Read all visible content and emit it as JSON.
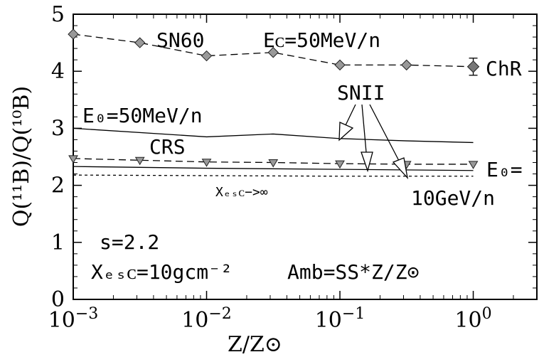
{
  "chart_data": {
    "type": "line",
    "xscale": "log",
    "xlim": [
      0.001,
      3
    ],
    "ylim": [
      0,
      5
    ],
    "xlabel": "Z/Z⊙",
    "ylabel": "Q(¹¹B)/Q(¹⁰B)",
    "x_ticks": [
      {
        "value": 0.001,
        "base": "10",
        "exp": "−3"
      },
      {
        "value": 0.01,
        "base": "10",
        "exp": "−2"
      },
      {
        "value": 0.1,
        "base": "10",
        "exp": "−1"
      },
      {
        "value": 1,
        "base": "10",
        "exp": "0"
      }
    ],
    "y_ticks": [
      "0",
      "1",
      "2",
      "3",
      "4",
      "5"
    ],
    "series": [
      {
        "style": "dashed-diamond",
        "x": [
          0.001,
          0.00316,
          0.01,
          0.0316,
          0.1,
          0.316,
          1
        ],
        "y": [
          4.65,
          4.5,
          4.27,
          4.33,
          4.11,
          4.11,
          4.08
        ]
      },
      {
        "style": "solid",
        "x": [
          0.001,
          0.01,
          0.0316,
          0.1,
          0.316,
          1
        ],
        "y": [
          3.0,
          2.85,
          2.9,
          2.82,
          2.78,
          2.75
        ]
      },
      {
        "style": "dashed-triangle",
        "x": [
          0.001,
          0.00316,
          0.01,
          0.0316,
          0.1,
          0.316,
          1
        ],
        "y": [
          2.47,
          2.44,
          2.41,
          2.4,
          2.38,
          2.37,
          2.37
        ]
      },
      {
        "style": "solid",
        "x": [
          0.001,
          0.01,
          0.1,
          1
        ],
        "y": [
          2.33,
          2.3,
          2.28,
          2.26
        ]
      },
      {
        "style": "dotted",
        "x": [
          0.001,
          0.01,
          0.1,
          1
        ],
        "y": [
          2.18,
          2.17,
          2.16,
          2.16
        ]
      }
    ],
    "chr_point": {
      "x": 1,
      "y": 4.08,
      "err": 0.15
    },
    "annotations": {
      "sn60": "SN60",
      "ec": "Eᴄ=50MeV/n",
      "chr": "ChR",
      "snii": "SNII",
      "e0_high": "E₀=50MeV/n",
      "crs": "CRS",
      "xesc_inf": "Xₑₛᴄ−>∞",
      "e0_low_1": "E₀=",
      "e0_low_2": "10GeV/n",
      "s": "s=2.2",
      "xesc": "Xₑₛᴄ=10gcm⁻²",
      "amb": "Amb=SS*Z/Z⊙"
    }
  }
}
